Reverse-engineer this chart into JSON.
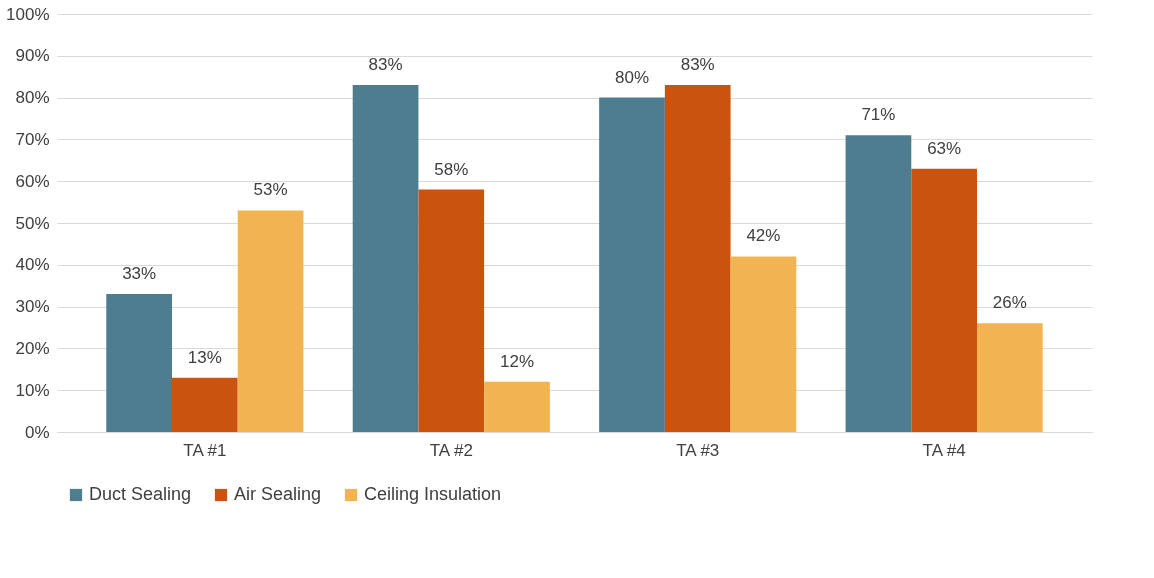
{
  "chart_data": {
    "type": "bar",
    "categories": [
      "TA #1",
      "TA #2",
      "TA #3",
      "TA #4"
    ],
    "series": [
      {
        "name": "Duct Sealing",
        "color": "#4e7d90",
        "values": [
          33,
          83,
          80,
          71
        ],
        "value_labels": [
          "33%",
          "83%",
          "80%",
          "71%"
        ]
      },
      {
        "name": "Air Sealing",
        "color": "#c9530f",
        "values": [
          13,
          58,
          83,
          63
        ],
        "value_labels": [
          "13%",
          "58%",
          "83%",
          "63%"
        ]
      },
      {
        "name": "Ceiling Insulation",
        "color": "#f2b452",
        "values": [
          53,
          12,
          42,
          26
        ],
        "value_labels": [
          "53%",
          "12%",
          "42%",
          "26%"
        ]
      }
    ],
    "ylim": [
      0,
      100
    ],
    "yticks": [
      {
        "value": 0,
        "label": "0%"
      },
      {
        "value": 10,
        "label": "10%"
      },
      {
        "value": 20,
        "label": "20%"
      },
      {
        "value": 30,
        "label": "30%"
      },
      {
        "value": 40,
        "label": "40%"
      },
      {
        "value": 50,
        "label": "50%"
      },
      {
        "value": 60,
        "label": "60%"
      },
      {
        "value": 70,
        "label": "70%"
      },
      {
        "value": 80,
        "label": "80%"
      },
      {
        "value": 90,
        "label": "90%"
      },
      {
        "value": 100,
        "label": "100%"
      }
    ],
    "grid": "y",
    "legend": "bottom"
  }
}
